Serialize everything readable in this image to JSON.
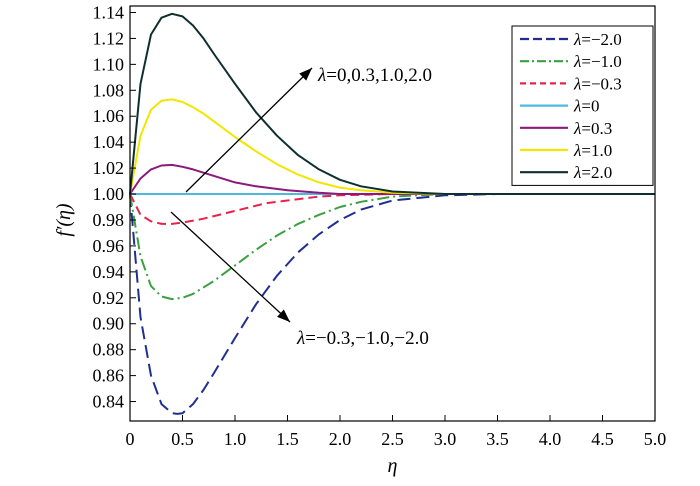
{
  "chart_data": {
    "type": "line",
    "title": "",
    "xlabel": "η",
    "ylabel": "f′(η)",
    "xlim": [
      0,
      5.0
    ],
    "ylim": [
      0.825,
      1.145
    ],
    "xticks": [
      0,
      0.5,
      1.0,
      1.5,
      2.0,
      2.5,
      3.0,
      3.5,
      4.0,
      4.5,
      5.0
    ],
    "xtick_labels": [
      "0",
      "0.5",
      "1.0",
      "1.5",
      "2.0",
      "2.5",
      "3.0",
      "3.5",
      "4.0",
      "4.5",
      "5.0"
    ],
    "yticks": [
      0.84,
      0.86,
      0.88,
      0.9,
      0.92,
      0.94,
      0.96,
      0.98,
      1.0,
      1.02,
      1.04,
      1.06,
      1.08,
      1.1,
      1.12,
      1.14
    ],
    "ytick_labels": [
      "0.84",
      "0.86",
      "0.88",
      "0.90",
      "0.92",
      "0.94",
      "0.96",
      "0.98",
      "1.00",
      "1.02",
      "1.04",
      "1.06",
      "1.08",
      "1.10",
      "1.12",
      "1.14"
    ],
    "grid": false,
    "legend_position": "top-right",
    "series": [
      {
        "name": "λ=−2.0",
        "label_prefix": "λ",
        "label_value": "=−2.0",
        "color": "#1f2f8f",
        "dash": "long-dash",
        "x": [
          0,
          0.1,
          0.2,
          0.3,
          0.4,
          0.45,
          0.5,
          0.6,
          0.7,
          0.8,
          1.0,
          1.2,
          1.4,
          1.6,
          1.8,
          2.0,
          2.2,
          2.5,
          3.0,
          3.5,
          4.0,
          5.0
        ],
        "y": [
          1.0,
          0.905,
          0.86,
          0.838,
          0.831,
          0.8305,
          0.831,
          0.838,
          0.849,
          0.862,
          0.889,
          0.915,
          0.937,
          0.955,
          0.969,
          0.98,
          0.988,
          0.995,
          0.999,
          1.0,
          1.0,
          1.0
        ]
      },
      {
        "name": "λ=−1.0",
        "label_prefix": "λ",
        "label_value": "=−1.0",
        "color": "#3aa040",
        "dash": "dash-dot",
        "x": [
          0,
          0.1,
          0.2,
          0.3,
          0.4,
          0.5,
          0.6,
          0.8,
          1.0,
          1.2,
          1.4,
          1.6,
          1.8,
          2.0,
          2.2,
          2.5,
          3.0,
          3.5,
          5.0
        ],
        "y": [
          1.0,
          0.952,
          0.929,
          0.921,
          0.919,
          0.92,
          0.923,
          0.933,
          0.945,
          0.957,
          0.968,
          0.977,
          0.984,
          0.99,
          0.994,
          0.998,
          1.0,
          1.0,
          1.0
        ]
      },
      {
        "name": "λ=−0.3",
        "label_prefix": "λ",
        "label_value": "=−0.3",
        "color": "#e8234a",
        "dash": "dash",
        "x": [
          0,
          0.1,
          0.2,
          0.3,
          0.4,
          0.5,
          0.7,
          0.9,
          1.1,
          1.3,
          1.5,
          1.8,
          2.0,
          2.5,
          3.0,
          5.0
        ],
        "y": [
          1.0,
          0.984,
          0.979,
          0.977,
          0.977,
          0.978,
          0.981,
          0.985,
          0.989,
          0.993,
          0.995,
          0.998,
          0.999,
          1.0,
          1.0,
          1.0
        ]
      },
      {
        "name": "λ=0",
        "label_prefix": "λ",
        "label_value": "=0",
        "color": "#4fb8e0",
        "dash": "solid",
        "x": [
          0,
          5.0
        ],
        "y": [
          1.0,
          1.0
        ]
      },
      {
        "name": "λ=0.3",
        "label_prefix": "λ",
        "label_value": "=0.3",
        "color": "#8b1a7a",
        "dash": "solid",
        "x": [
          0,
          0.1,
          0.2,
          0.3,
          0.4,
          0.5,
          0.6,
          0.8,
          1.0,
          1.2,
          1.5,
          1.8,
          2.0,
          2.5,
          3.0,
          5.0
        ],
        "y": [
          1.0,
          1.012,
          1.019,
          1.022,
          1.0225,
          1.021,
          1.019,
          1.014,
          1.009,
          1.006,
          1.003,
          1.001,
          1.0,
          1.0,
          1.0,
          1.0
        ]
      },
      {
        "name": "λ=1.0",
        "label_prefix": "λ",
        "label_value": "=1.0",
        "color": "#f2e600",
        "dash": "solid",
        "x": [
          0,
          0.1,
          0.2,
          0.3,
          0.4,
          0.5,
          0.6,
          0.7,
          0.8,
          1.0,
          1.2,
          1.4,
          1.6,
          1.8,
          2.0,
          2.2,
          2.5,
          3.0,
          5.0
        ],
        "y": [
          1.0,
          1.045,
          1.065,
          1.072,
          1.073,
          1.071,
          1.067,
          1.062,
          1.056,
          1.044,
          1.033,
          1.023,
          1.015,
          1.009,
          1.005,
          1.003,
          1.001,
          1.0,
          1.0
        ]
      },
      {
        "name": "λ=2.0",
        "label_prefix": "λ",
        "label_value": "=2.0",
        "color": "#0f2f2f",
        "dash": "solid",
        "x": [
          0,
          0.1,
          0.2,
          0.3,
          0.4,
          0.5,
          0.6,
          0.7,
          0.8,
          1.0,
          1.2,
          1.4,
          1.6,
          1.8,
          2.0,
          2.2,
          2.5,
          3.0,
          5.0
        ],
        "y": [
          1.0,
          1.085,
          1.123,
          1.136,
          1.139,
          1.137,
          1.13,
          1.12,
          1.108,
          1.085,
          1.063,
          1.045,
          1.03,
          1.019,
          1.011,
          1.006,
          1.002,
          1.0,
          1.0
        ]
      }
    ],
    "annotations": [
      {
        "prefix": "λ",
        "text": "=0,0.3,1.0,2.0"
      },
      {
        "prefix": "λ",
        "text": "=−0.3,−1.0,−2.0"
      }
    ]
  }
}
